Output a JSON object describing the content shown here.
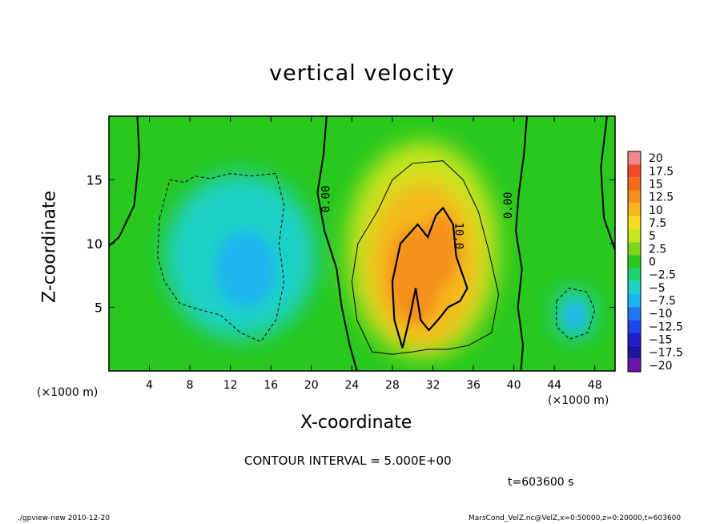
{
  "chart_data": {
    "type": "heatmap",
    "title": "vertical velocity",
    "xlabel": "X-coordinate",
    "ylabel": "Z-coordinate",
    "x_unit": "(×1000 m)",
    "x_range": [
      0,
      50
    ],
    "y_range": [
      0,
      20
    ],
    "x_ticks": [
      "4",
      "8",
      "12",
      "16",
      "20",
      "24",
      "28",
      "32",
      "36",
      "40",
      "44",
      "48"
    ],
    "y_ticks": [
      "5",
      "10",
      "15"
    ],
    "colorbar": {
      "levels": [
        "20",
        "17.5",
        "15",
        "12.5",
        "10",
        "7.5",
        "5",
        "2.5",
        "0",
        "−2.5",
        "−5",
        "−7.5",
        "−10",
        "−12.5",
        "−15",
        "−17.5",
        "−20"
      ],
      "colors": [
        "#f08a8a",
        "#f04b28",
        "#f26a1a",
        "#f5901a",
        "#f5b81c",
        "#f5dc1e",
        "#c8e61e",
        "#7ed61c",
        "#28c81e",
        "#1ed26e",
        "#1ed2c8",
        "#1eb6f0",
        "#1e78f0",
        "#1e46e6",
        "#1e1ec8",
        "#1e14a0",
        "#6a14aa"
      ]
    },
    "contour_labels": [
      "0.00",
      "0.00",
      "10.0"
    ],
    "features": [
      {
        "kind": "updraft",
        "x_center": 31,
        "z_center": 8.5,
        "max_value": 15
      },
      {
        "kind": "downdraft",
        "x_center": 13,
        "z_center": 9,
        "min_value": -10
      },
      {
        "kind": "downdraft",
        "x_center": 46,
        "z_center": 4.5,
        "min_value": -7.5
      }
    ],
    "contour_interval": "CONTOUR INTERVAL = 5.000E+00",
    "time": "t=603600 s"
  },
  "footer": {
    "left": "./gpview-new   2010-12-20",
    "right": "MarsCond_VelZ.nc@VelZ,x=0:50000,z=0:20000,t=603600"
  }
}
